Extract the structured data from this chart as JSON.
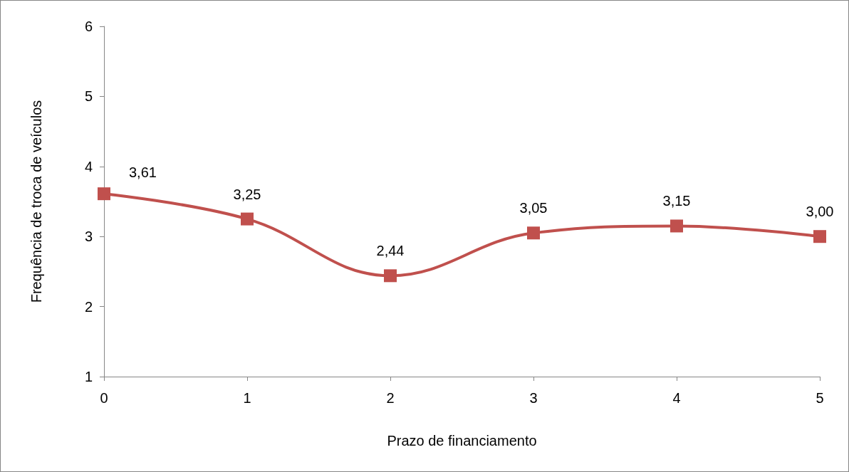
{
  "chart_data": {
    "type": "line",
    "xlabel": "Prazo de financiamento",
    "ylabel": "Frequência de troca de veículos",
    "x": [
      0,
      1,
      2,
      3,
      4,
      5
    ],
    "series": [
      {
        "color": "#c0504d",
        "values": [
          3.61,
          3.25,
          2.44,
          3.05,
          3.15,
          3.0
        ],
        "value_labels": [
          "3,61",
          "3,25",
          "2,44",
          "3,05",
          "3,15",
          "3,00"
        ]
      }
    ],
    "xlim": [
      0,
      5
    ],
    "xticks": [
      0,
      1,
      2,
      3,
      4,
      5
    ],
    "ylim": [
      1,
      6
    ],
    "yticks": [
      1,
      2,
      3,
      4,
      5,
      6
    ],
    "grid": false,
    "marker": "square",
    "line_style": "solid"
  }
}
